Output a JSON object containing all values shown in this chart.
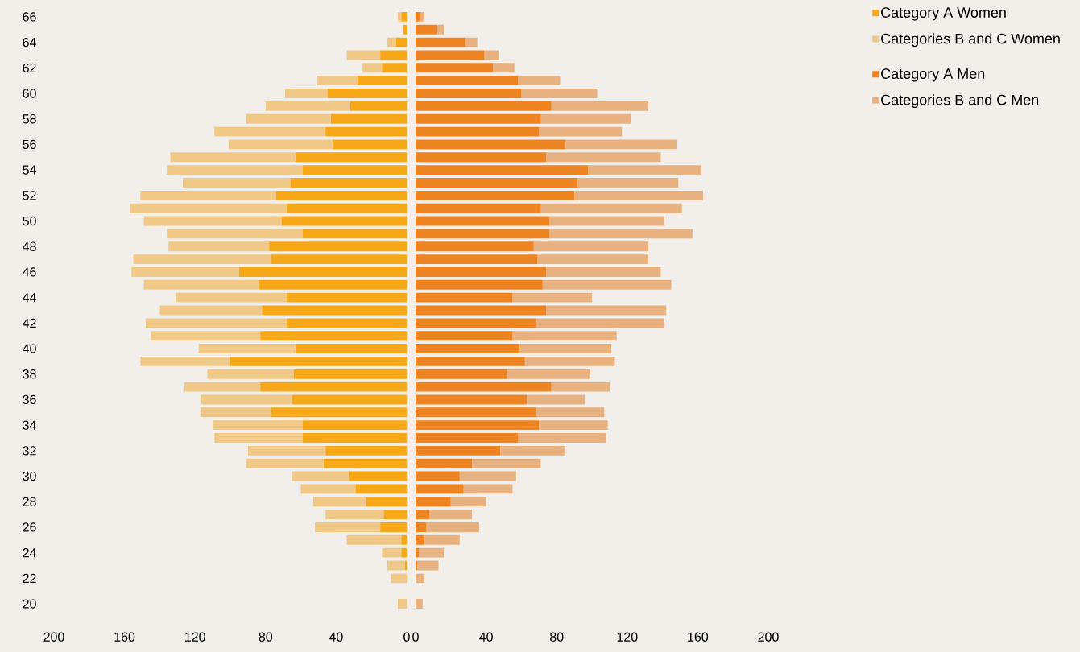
{
  "chart_data": [
    {
      "type": "bar",
      "orientation": "horizontal",
      "stacked": true,
      "legend": "top right",
      "categories": [
        "66",
        null,
        "64",
        null,
        "62",
        null,
        "60",
        null,
        "58",
        null,
        "56",
        null,
        "54",
        null,
        "52",
        null,
        "50",
        null,
        "48",
        null,
        "46",
        null,
        "44",
        null,
        "42",
        null,
        "40",
        null,
        "38",
        null,
        "36",
        null,
        "34",
        null,
        "32",
        null,
        "30",
        null,
        "28",
        null,
        "26",
        null,
        "24",
        null,
        "22",
        null,
        "20"
      ],
      "xlim": [
        200,
        0
      ],
      "xticks": [
        200,
        160,
        120,
        80,
        40,
        0
      ],
      "series": [
        {
          "name": "Category A Women",
          "color": "#f7a818",
          "values": [
            3,
            2,
            6,
            15,
            14,
            28,
            45,
            32,
            43,
            46,
            42,
            63,
            59,
            66,
            74,
            68,
            71,
            59,
            78,
            77,
            95,
            84,
            68,
            82,
            68,
            83,
            63,
            100,
            64,
            83,
            65,
            77,
            59,
            59,
            46,
            47,
            33,
            29,
            23,
            13,
            15,
            3,
            3,
            1,
            0,
            0,
            0
          ]
        },
        {
          "name": "Categories B and C Women",
          "color": "#f0c888",
          "values": [
            2,
            0,
            5,
            19,
            11,
            23,
            24,
            48,
            48,
            63,
            59,
            71,
            77,
            61,
            77,
            89,
            78,
            77,
            57,
            78,
            61,
            65,
            63,
            58,
            80,
            62,
            55,
            51,
            49,
            43,
            52,
            40,
            51,
            50,
            44,
            44,
            32,
            31,
            30,
            33,
            37,
            31,
            11,
            10,
            9,
            0,
            5
          ]
        }
      ]
    },
    {
      "type": "bar",
      "orientation": "horizontal",
      "stacked": true,
      "legend": "top right",
      "tick_labels": "x",
      "categories": [
        "66",
        null,
        "64",
        null,
        "62",
        null,
        "60",
        null,
        "58",
        null,
        "56",
        null,
        "54",
        null,
        "52",
        null,
        "50",
        null,
        "48",
        null,
        "46",
        null,
        "44",
        null,
        "42",
        null,
        "40",
        null,
        "38",
        null,
        "36",
        null,
        "34",
        null,
        "32",
        null,
        "30",
        null,
        "28",
        null,
        "26",
        null,
        "24",
        null,
        "22",
        null,
        "20"
      ],
      "xlim": [
        0,
        200
      ],
      "xticks": [
        0,
        40,
        80,
        120,
        160,
        200
      ],
      "series": [
        {
          "name": "Category A Men",
          "color": "#ee8421",
          "values": [
            3,
            12,
            28,
            39,
            44,
            58,
            60,
            77,
            71,
            70,
            85,
            74,
            98,
            92,
            90,
            71,
            76,
            76,
            67,
            69,
            74,
            72,
            55,
            74,
            68,
            55,
            59,
            62,
            52,
            77,
            63,
            68,
            70,
            58,
            48,
            32,
            25,
            27,
            20,
            8,
            6,
            5,
            2,
            1,
            0,
            0,
            0
          ]
        },
        {
          "name": "Categories B and C Men",
          "color": "#e8b280",
          "values": [
            2,
            4,
            7,
            8,
            12,
            24,
            43,
            55,
            51,
            47,
            63,
            65,
            64,
            57,
            73,
            80,
            65,
            81,
            65,
            63,
            65,
            73,
            45,
            68,
            73,
            59,
            52,
            51,
            47,
            33,
            33,
            39,
            39,
            50,
            37,
            39,
            32,
            28,
            20,
            24,
            30,
            20,
            14,
            12,
            5,
            0,
            4
          ]
        }
      ]
    }
  ]
}
